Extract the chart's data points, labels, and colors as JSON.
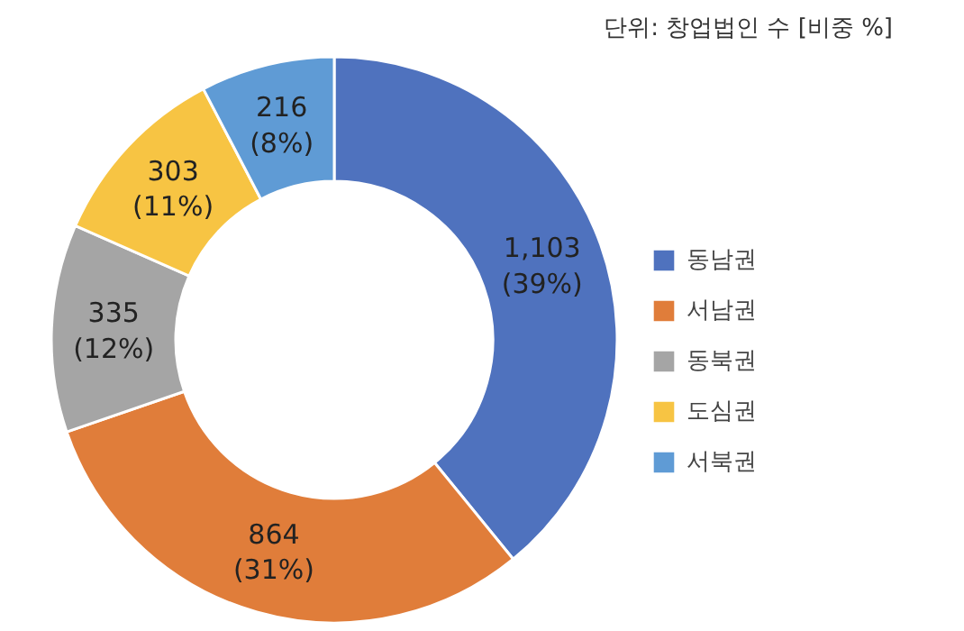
{
  "chart_data": {
    "type": "donut",
    "categories": [
      "동남권",
      "서남권",
      "동북권",
      "도심권",
      "서북권"
    ],
    "values": [
      1103,
      864,
      335,
      303,
      216
    ],
    "colors": [
      "#4f72be",
      "#e07d3a",
      "#a5a5a5",
      "#f7c443",
      "#5f9bd5"
    ],
    "value_labels": [
      "1,103\n(39%)",
      "864\n(31%)",
      "335\n(12%)",
      "303\n(11%)",
      "216\n(8%)"
    ],
    "annotations": [
      "단위: 창업법인 수 [비중 %]"
    ],
    "legend": "right"
  }
}
